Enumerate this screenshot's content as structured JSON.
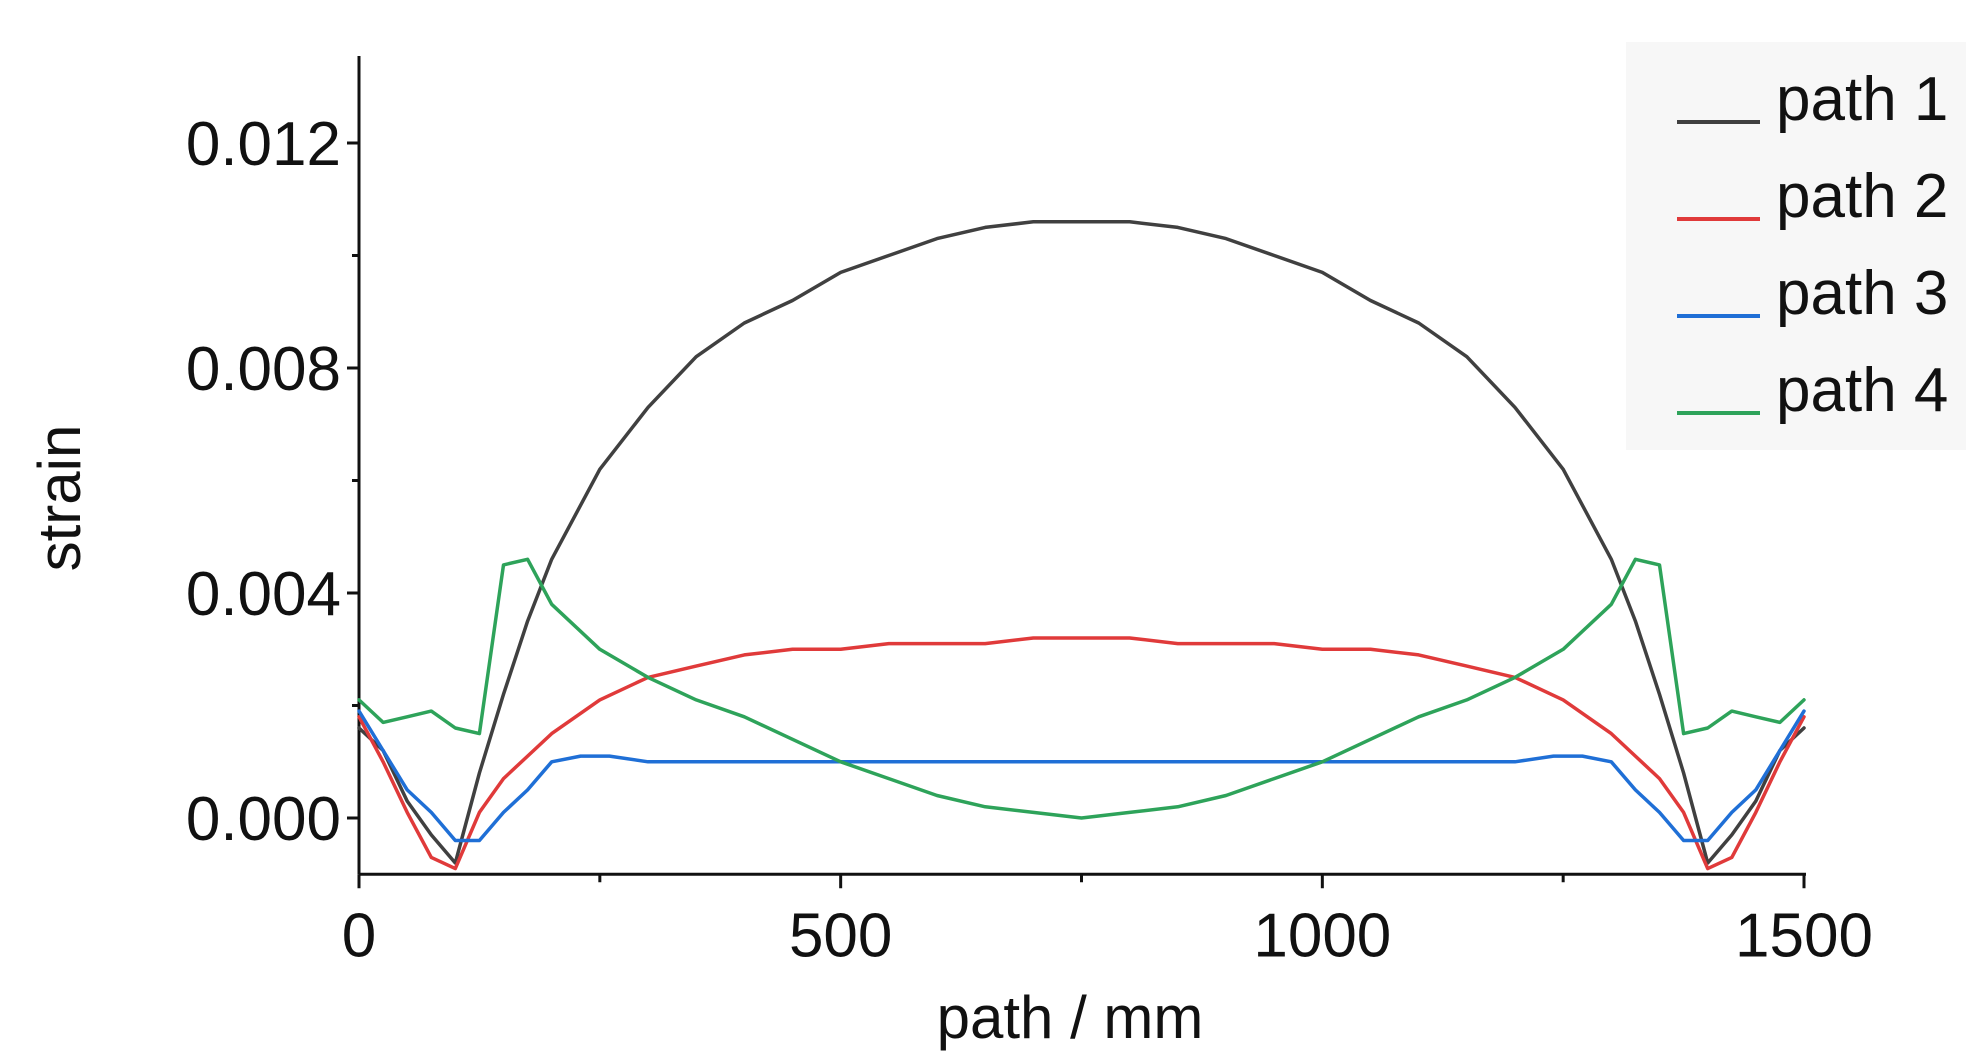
{
  "colors": {
    "path1": "#404040",
    "path2": "#e03a3a",
    "path3": "#1f6fd6",
    "path4": "#2ea35a",
    "axis": "#111111",
    "legend_bg": "#f7f7f7"
  },
  "chart_data": {
    "type": "line",
    "title": "",
    "xlabel": "path / mm",
    "ylabel": "strain",
    "xlim": [
      0,
      1500
    ],
    "ylim": [
      -0.001,
      0.0135
    ],
    "x_ticks": [
      0,
      500,
      1000,
      1500
    ],
    "x_tick_labels": [
      "0",
      "500",
      "1000",
      "1500"
    ],
    "y_ticks": [
      0.0,
      0.004,
      0.008,
      0.012
    ],
    "y_tick_labels": [
      "0.000",
      "0.004",
      "0.008",
      "0.012"
    ],
    "grid": false,
    "legend_position": "top-right",
    "series": [
      {
        "name": "path 1",
        "color_key": "path1",
        "points": [
          [
            0,
            0.0016
          ],
          [
            25,
            0.0012
          ],
          [
            50,
            0.0003
          ],
          [
            75,
            -0.0003
          ],
          [
            100,
            -0.0008
          ],
          [
            125,
            0.0008
          ],
          [
            150,
            0.0022
          ],
          [
            175,
            0.0035
          ],
          [
            200,
            0.0046
          ],
          [
            250,
            0.0062
          ],
          [
            300,
            0.0073
          ],
          [
            350,
            0.0082
          ],
          [
            400,
            0.0088
          ],
          [
            450,
            0.0092
          ],
          [
            500,
            0.0097
          ],
          [
            550,
            0.01
          ],
          [
            600,
            0.0103
          ],
          [
            650,
            0.0105
          ],
          [
            700,
            0.0106
          ],
          [
            750,
            0.0106
          ],
          [
            800,
            0.0106
          ],
          [
            850,
            0.0105
          ],
          [
            900,
            0.0103
          ],
          [
            950,
            0.01
          ],
          [
            1000,
            0.0097
          ],
          [
            1050,
            0.0092
          ],
          [
            1100,
            0.0088
          ],
          [
            1150,
            0.0082
          ],
          [
            1200,
            0.0073
          ],
          [
            1250,
            0.0062
          ],
          [
            1300,
            0.0046
          ],
          [
            1325,
            0.0035
          ],
          [
            1350,
            0.0022
          ],
          [
            1375,
            0.0008
          ],
          [
            1400,
            -0.0008
          ],
          [
            1425,
            -0.0003
          ],
          [
            1450,
            0.0003
          ],
          [
            1475,
            0.0012
          ],
          [
            1500,
            0.0016
          ]
        ]
      },
      {
        "name": "path 2",
        "color_key": "path2",
        "points": [
          [
            0,
            0.0018
          ],
          [
            25,
            0.001
          ],
          [
            50,
            0.0001
          ],
          [
            75,
            -0.0007
          ],
          [
            100,
            -0.0009
          ],
          [
            125,
            0.0001
          ],
          [
            150,
            0.0007
          ],
          [
            175,
            0.0011
          ],
          [
            200,
            0.0015
          ],
          [
            250,
            0.0021
          ],
          [
            300,
            0.0025
          ],
          [
            350,
            0.0027
          ],
          [
            400,
            0.0029
          ],
          [
            450,
            0.003
          ],
          [
            500,
            0.003
          ],
          [
            550,
            0.0031
          ],
          [
            600,
            0.0031
          ],
          [
            650,
            0.0031
          ],
          [
            700,
            0.0032
          ],
          [
            750,
            0.0032
          ],
          [
            800,
            0.0032
          ],
          [
            850,
            0.0031
          ],
          [
            900,
            0.0031
          ],
          [
            950,
            0.0031
          ],
          [
            1000,
            0.003
          ],
          [
            1050,
            0.003
          ],
          [
            1100,
            0.0029
          ],
          [
            1150,
            0.0027
          ],
          [
            1200,
            0.0025
          ],
          [
            1250,
            0.0021
          ],
          [
            1300,
            0.0015
          ],
          [
            1325,
            0.0011
          ],
          [
            1350,
            0.0007
          ],
          [
            1375,
            0.0001
          ],
          [
            1400,
            -0.0009
          ],
          [
            1425,
            -0.0007
          ],
          [
            1450,
            0.0001
          ],
          [
            1475,
            0.001
          ],
          [
            1500,
            0.0018
          ]
        ]
      },
      {
        "name": "path 3",
        "color_key": "path3",
        "points": [
          [
            0,
            0.0019
          ],
          [
            25,
            0.0012
          ],
          [
            50,
            0.0005
          ],
          [
            75,
            0.0001
          ],
          [
            100,
            -0.0004
          ],
          [
            125,
            -0.0004
          ],
          [
            150,
            0.0001
          ],
          [
            175,
            0.0005
          ],
          [
            200,
            0.001
          ],
          [
            230,
            0.0011
          ],
          [
            260,
            0.0011
          ],
          [
            300,
            0.001
          ],
          [
            350,
            0.001
          ],
          [
            400,
            0.001
          ],
          [
            450,
            0.001
          ],
          [
            500,
            0.001
          ],
          [
            600,
            0.001
          ],
          [
            750,
            0.001
          ],
          [
            900,
            0.001
          ],
          [
            1000,
            0.001
          ],
          [
            1050,
            0.001
          ],
          [
            1100,
            0.001
          ],
          [
            1150,
            0.001
          ],
          [
            1200,
            0.001
          ],
          [
            1240,
            0.0011
          ],
          [
            1270,
            0.0011
          ],
          [
            1300,
            0.001
          ],
          [
            1325,
            0.0005
          ],
          [
            1350,
            0.0001
          ],
          [
            1375,
            -0.0004
          ],
          [
            1400,
            -0.0004
          ],
          [
            1425,
            0.0001
          ],
          [
            1450,
            0.0005
          ],
          [
            1475,
            0.0012
          ],
          [
            1500,
            0.0019
          ]
        ]
      },
      {
        "name": "path 4",
        "color_key": "path4",
        "points": [
          [
            0,
            0.0021
          ],
          [
            25,
            0.0017
          ],
          [
            50,
            0.0018
          ],
          [
            75,
            0.0019
          ],
          [
            100,
            0.0016
          ],
          [
            125,
            0.0015
          ],
          [
            150,
            0.0045
          ],
          [
            175,
            0.0046
          ],
          [
            200,
            0.0038
          ],
          [
            250,
            0.003
          ],
          [
            300,
            0.0025
          ],
          [
            350,
            0.0021
          ],
          [
            400,
            0.0018
          ],
          [
            450,
            0.0014
          ],
          [
            500,
            0.001
          ],
          [
            550,
            0.0007
          ],
          [
            600,
            0.0004
          ],
          [
            650,
            0.0002
          ],
          [
            700,
            0.0001
          ],
          [
            750,
            0.0
          ],
          [
            800,
            0.0001
          ],
          [
            850,
            0.0002
          ],
          [
            900,
            0.0004
          ],
          [
            950,
            0.0007
          ],
          [
            1000,
            0.001
          ],
          [
            1050,
            0.0014
          ],
          [
            1100,
            0.0018
          ],
          [
            1150,
            0.0021
          ],
          [
            1200,
            0.0025
          ],
          [
            1250,
            0.003
          ],
          [
            1300,
            0.0038
          ],
          [
            1325,
            0.0046
          ],
          [
            1350,
            0.0045
          ],
          [
            1375,
            0.0015
          ],
          [
            1400,
            0.0016
          ],
          [
            1425,
            0.0019
          ],
          [
            1450,
            0.0018
          ],
          [
            1475,
            0.0017
          ],
          [
            1500,
            0.0021
          ]
        ]
      }
    ]
  }
}
